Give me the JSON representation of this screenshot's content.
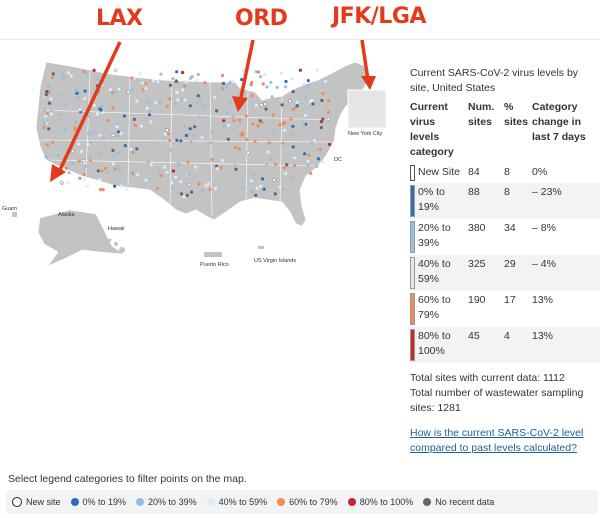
{
  "annotations": {
    "lax": "LAX",
    "ord": "ORD",
    "jfk": "JFK/LGA"
  },
  "map": {
    "labels": {
      "guam": "Guam",
      "alaska": "Alaska",
      "hawaii": "Hawaii",
      "puerto_rico": "Puerto Rico",
      "usvi": "US Virgin Islands",
      "nyc": "New York City",
      "dc": "DC"
    }
  },
  "panel": {
    "title": "Current SARS-CoV-2 virus levels by site, United States",
    "headers": [
      "Current virus levels category",
      "Num. sites",
      "% sites",
      "Category change in last 7 days"
    ],
    "rows": [
      {
        "category": "New Site",
        "num": "84",
        "pct": "8",
        "change": "0%",
        "color": "#ffffff"
      },
      {
        "category": "0% to 19%",
        "num": "88",
        "pct": "8",
        "change": "– 23%",
        "color": "#2f6db4"
      },
      {
        "category": "20% to 39%",
        "num": "380",
        "pct": "34",
        "change": "– 8%",
        "color": "#98bfdf"
      },
      {
        "category": "40% to 59%",
        "num": "325",
        "pct": "29",
        "change": "– 4%",
        "color": "#ddebf5"
      },
      {
        "category": "60% to 79%",
        "num": "190",
        "pct": "17",
        "change": "13%",
        "color": "#f08c5a"
      },
      {
        "category": "80% to 100%",
        "num": "45",
        "pct": "4",
        "change": "13%",
        "color": "#c8272c"
      }
    ],
    "total_current": "Total sites with current data: 1112",
    "total_sites": "Total number of wastewater sampling sites: 1281",
    "link": "How is the current SARS-CoV-2 level compared to past levels calculated?"
  },
  "legend": {
    "hint": "Select legend categories to filter points on the map.",
    "items": [
      {
        "label": "New site",
        "color": "#ffffff"
      },
      {
        "label": "0% to 19%",
        "color": "#2f6db4"
      },
      {
        "label": "20% to 39%",
        "color": "#98bfdf"
      },
      {
        "label": "40% to 59%",
        "color": "#ddebf5"
      },
      {
        "label": "60% to 79%",
        "color": "#f08c5a"
      },
      {
        "label": "80% to 100%",
        "color": "#c8272c"
      },
      {
        "label": "No recent data",
        "color": "#666666"
      }
    ]
  },
  "colors": {
    "accent": "#e43a1c",
    "land": "#c3c3c3",
    "link": "#1f5f9a"
  }
}
